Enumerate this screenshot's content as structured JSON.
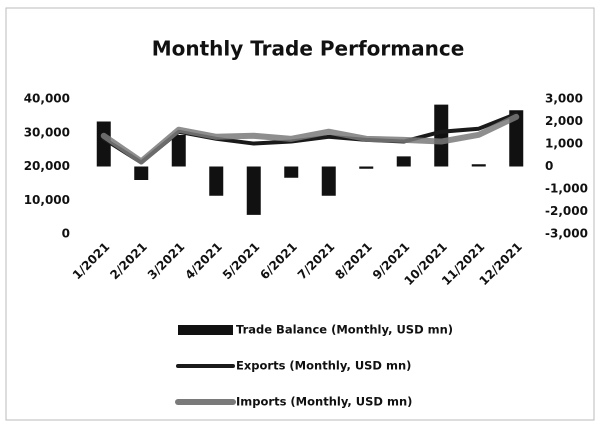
{
  "chart_data": {
    "type": "combo",
    "title": "Monthly Trade Performance",
    "categories": [
      "1/2021",
      "2/2021",
      "3/2021",
      "4/2021",
      "5/2021",
      "6/2021",
      "7/2021",
      "8/2021",
      "9/2021",
      "10/2021",
      "11/2021",
      "12/2021"
    ],
    "series": [
      {
        "name": "Trade Balance  (Monthly, USD mn)",
        "type": "bar",
        "axis": "y2",
        "color": "#111111",
        "values": [
          2000,
          -600,
          1400,
          -1300,
          -2150,
          -500,
          -1300,
          -100,
          450,
          2750,
          100,
          2500
        ]
      },
      {
        "name": "Exports (Monthly, USD mn)",
        "type": "line",
        "color": "#1a1a1a",
        "values": [
          28200,
          21200,
          30300,
          28200,
          26800,
          27400,
          28800,
          27900,
          27400,
          30300,
          31200,
          35600
        ]
      },
      {
        "name": "Imports (Monthly, USD mn)",
        "type": "line",
        "color": "#7a7a7a",
        "values": [
          29100,
          21500,
          30900,
          28800,
          29100,
          28200,
          30300,
          28200,
          27900,
          27400,
          29400,
          34700
        ]
      }
    ],
    "ylim": [
      0,
      40000
    ],
    "yticks": [
      0,
      {
        "value": 10000,
        "label": "10,000"
      },
      {
        "value": 20000,
        "label": "20,000"
      },
      {
        "value": 30000,
        "label": "30,000"
      },
      {
        "value": 40000,
        "label": "40,000"
      }
    ],
    "y2lim": [
      -3000,
      3000
    ],
    "y2ticks": [
      {
        "value": -3000,
        "label": "-3,000"
      },
      {
        "value": -2000,
        "label": "-2,000"
      },
      {
        "value": -1000,
        "label": "-1,000"
      },
      0,
      {
        "value": 1000,
        "label": "1,000"
      },
      {
        "value": 2000,
        "label": "2,000"
      },
      {
        "value": 3000,
        "label": "3,000"
      }
    ],
    "grid": false
  }
}
